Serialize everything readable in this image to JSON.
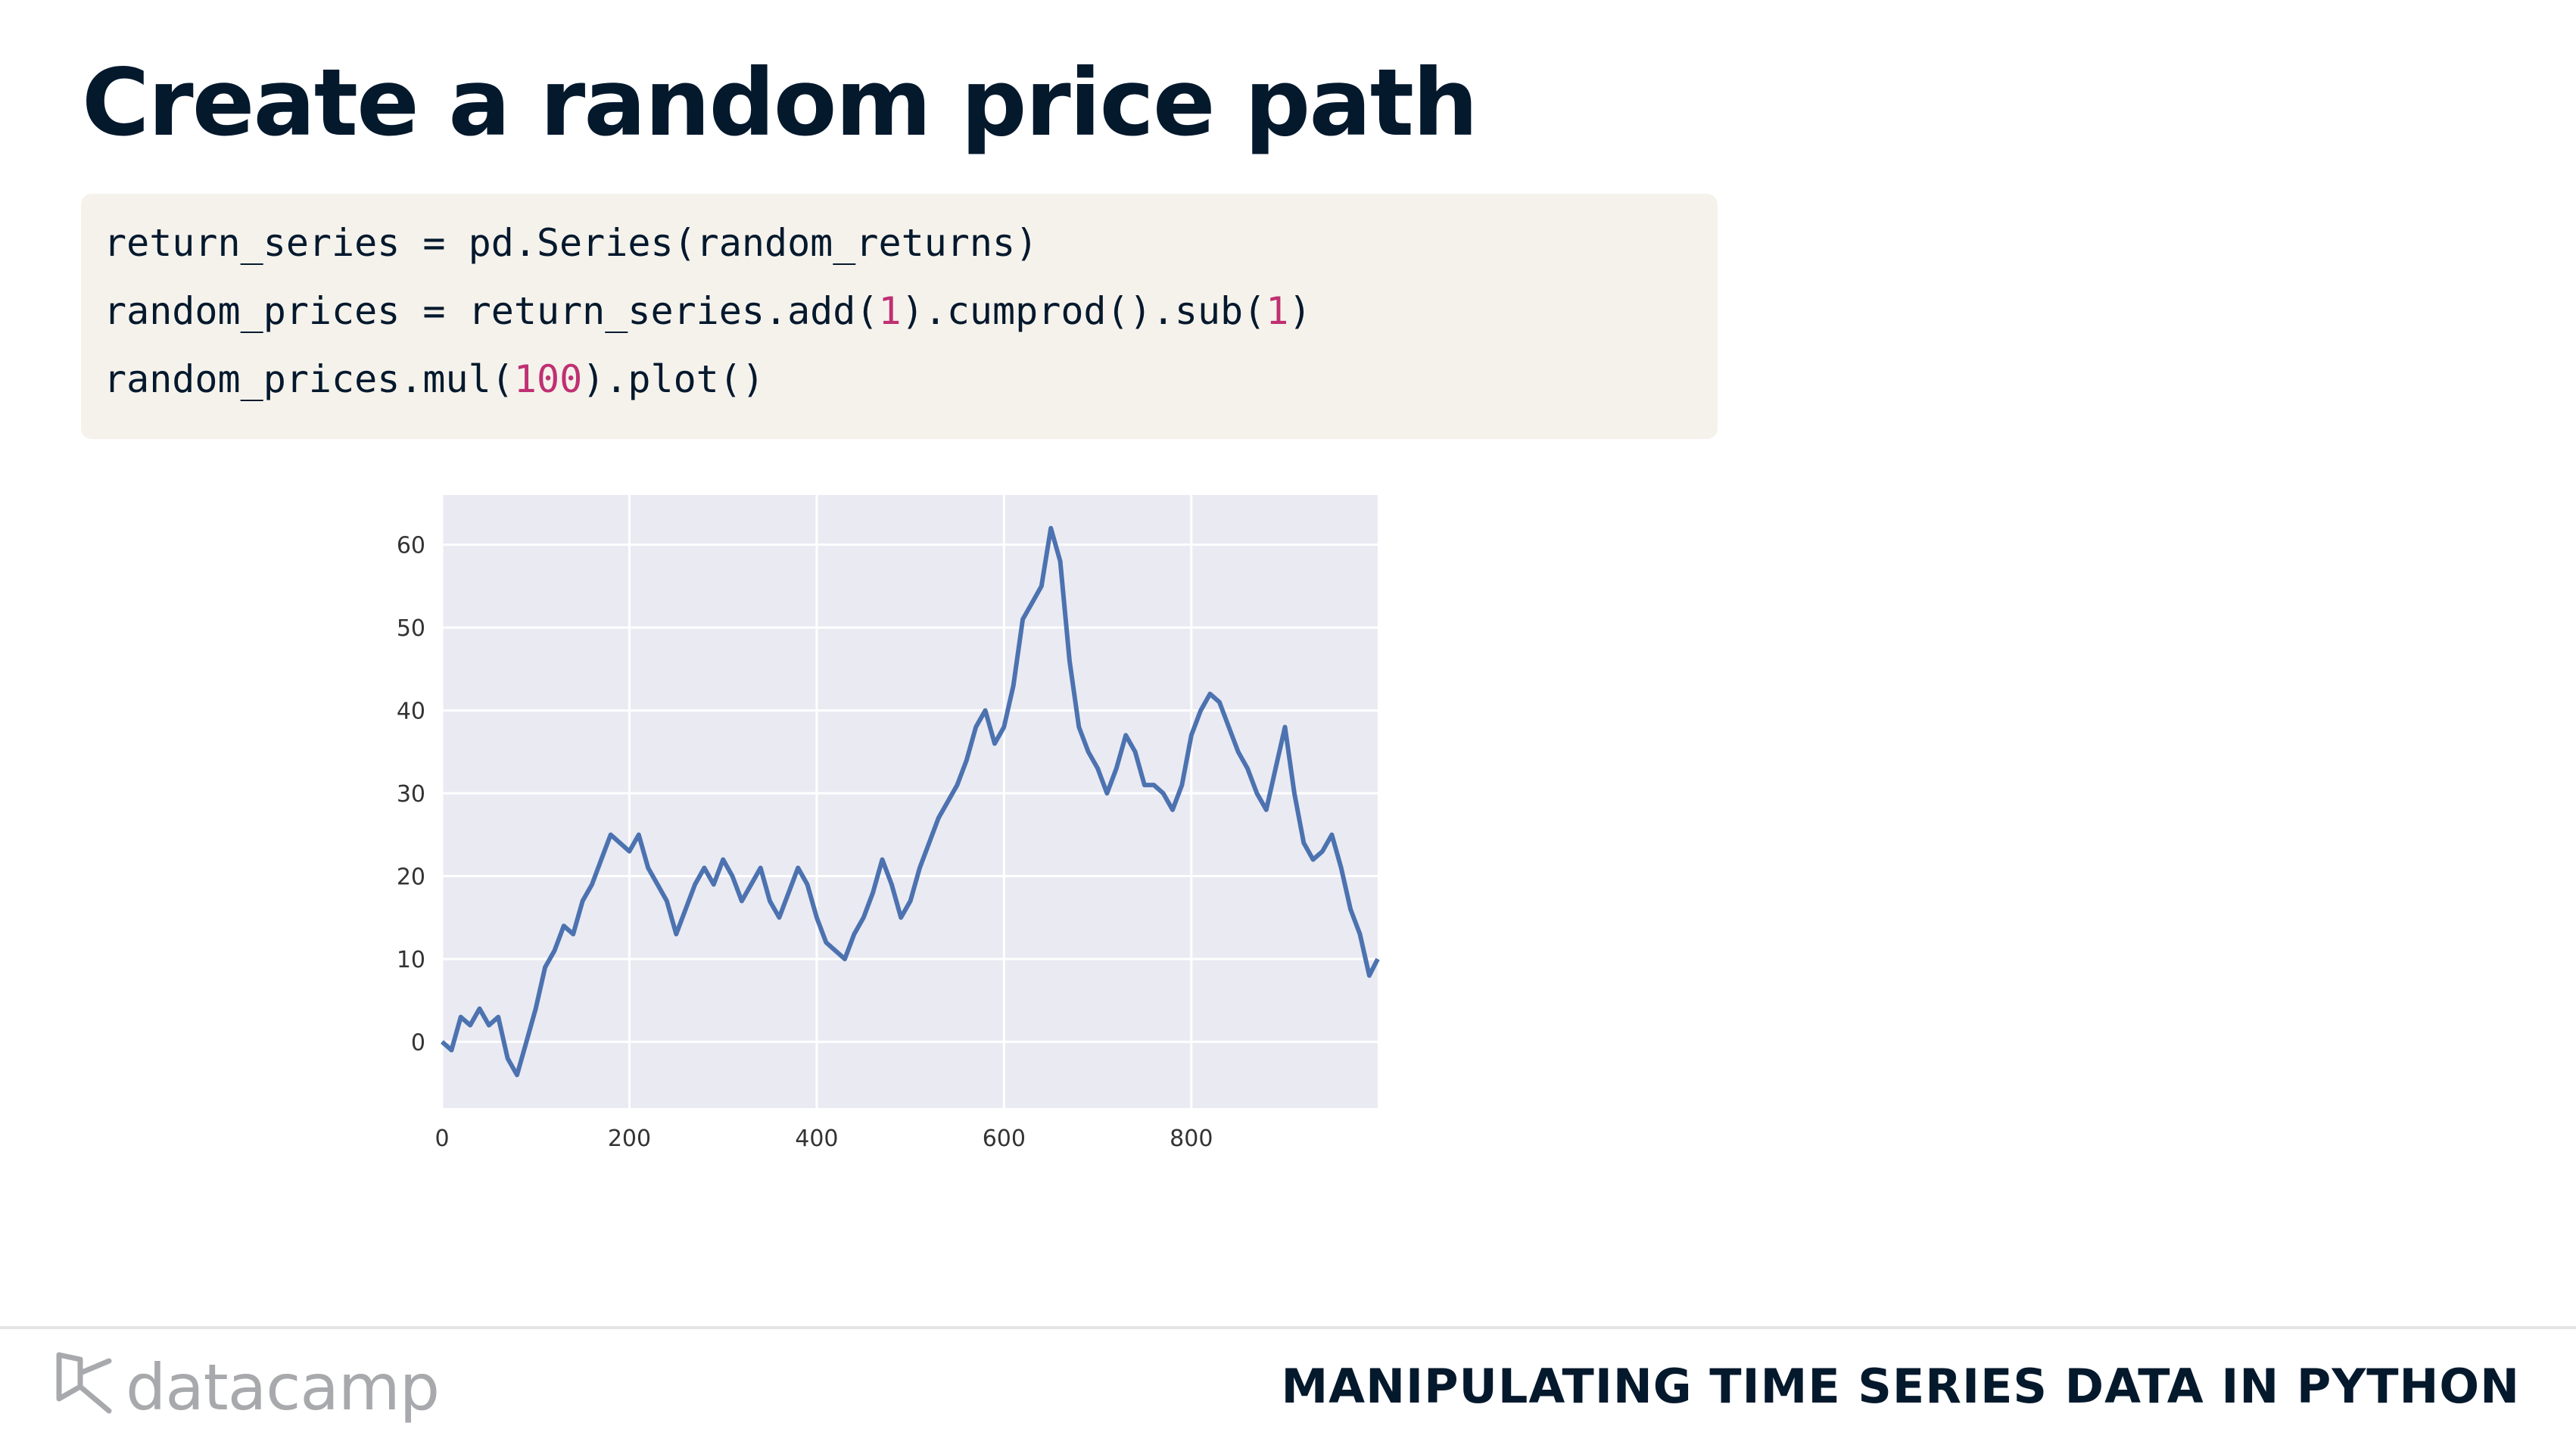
{
  "slide": {
    "title": "Create a random price path",
    "code": [
      [
        {
          "t": "return_series = pd.Series(random_returns)"
        }
      ],
      [
        {
          "t": "random_prices = return_series.add("
        },
        {
          "t": "1",
          "n": true
        },
        {
          "t": ").cumprod().sub("
        },
        {
          "t": "1",
          "n": true
        },
        {
          "t": ")"
        }
      ],
      [
        {
          "t": "random_prices.mul("
        },
        {
          "t": "100",
          "n": true
        },
        {
          "t": ").plot()"
        }
      ]
    ]
  },
  "footer": {
    "brand": "datacamp",
    "course": "MANIPULATING TIME SERIES DATA IN PYTHON"
  },
  "colors": {
    "title": "#05192d",
    "code_bg": "#f5f2ec",
    "code_number": "#bf3072",
    "plot_bg": "#eaeaf2",
    "line": "#4c72b0",
    "brand": "#a7a9ac"
  },
  "chart_data": {
    "type": "line",
    "title": "",
    "xlabel": "",
    "ylabel": "",
    "xlim": [
      0,
      999
    ],
    "ylim": [
      -8,
      66
    ],
    "xticks": [
      0,
      200,
      400,
      600,
      800
    ],
    "yticks": [
      0,
      10,
      20,
      30,
      40,
      50,
      60
    ],
    "grid": true,
    "legend": "none",
    "series": [
      {
        "points": [
          [
            0,
            0
          ],
          [
            10,
            -1
          ],
          [
            20,
            3
          ],
          [
            30,
            2
          ],
          [
            40,
            4
          ],
          [
            50,
            2
          ],
          [
            60,
            3
          ],
          [
            70,
            -2
          ],
          [
            80,
            -4
          ],
          [
            90,
            0
          ],
          [
            100,
            4
          ],
          [
            110,
            9
          ],
          [
            120,
            11
          ],
          [
            130,
            14
          ],
          [
            140,
            13
          ],
          [
            150,
            17
          ],
          [
            160,
            19
          ],
          [
            170,
            22
          ],
          [
            180,
            25
          ],
          [
            190,
            24
          ],
          [
            200,
            23
          ],
          [
            210,
            25
          ],
          [
            220,
            21
          ],
          [
            230,
            19
          ],
          [
            240,
            17
          ],
          [
            250,
            13
          ],
          [
            260,
            16
          ],
          [
            270,
            19
          ],
          [
            280,
            21
          ],
          [
            290,
            19
          ],
          [
            300,
            22
          ],
          [
            310,
            20
          ],
          [
            320,
            17
          ],
          [
            330,
            19
          ],
          [
            340,
            21
          ],
          [
            350,
            17
          ],
          [
            360,
            15
          ],
          [
            370,
            18
          ],
          [
            380,
            21
          ],
          [
            390,
            19
          ],
          [
            400,
            15
          ],
          [
            410,
            12
          ],
          [
            420,
            11
          ],
          [
            430,
            10
          ],
          [
            440,
            13
          ],
          [
            450,
            15
          ],
          [
            460,
            18
          ],
          [
            470,
            22
          ],
          [
            480,
            19
          ],
          [
            490,
            15
          ],
          [
            500,
            17
          ],
          [
            510,
            21
          ],
          [
            520,
            24
          ],
          [
            530,
            27
          ],
          [
            540,
            29
          ],
          [
            550,
            31
          ],
          [
            560,
            34
          ],
          [
            570,
            38
          ],
          [
            580,
            40
          ],
          [
            590,
            36
          ],
          [
            600,
            38
          ],
          [
            610,
            43
          ],
          [
            620,
            51
          ],
          [
            630,
            53
          ],
          [
            640,
            55
          ],
          [
            650,
            62
          ],
          [
            660,
            58
          ],
          [
            670,
            46
          ],
          [
            680,
            38
          ],
          [
            690,
            35
          ],
          [
            700,
            33
          ],
          [
            710,
            30
          ],
          [
            720,
            33
          ],
          [
            730,
            37
          ],
          [
            740,
            35
          ],
          [
            750,
            31
          ],
          [
            760,
            31
          ],
          [
            770,
            30
          ],
          [
            780,
            28
          ],
          [
            790,
            31
          ],
          [
            800,
            37
          ],
          [
            810,
            40
          ],
          [
            820,
            42
          ],
          [
            830,
            41
          ],
          [
            840,
            38
          ],
          [
            850,
            35
          ],
          [
            860,
            33
          ],
          [
            870,
            30
          ],
          [
            880,
            28
          ],
          [
            890,
            33
          ],
          [
            900,
            38
          ],
          [
            910,
            30
          ],
          [
            920,
            24
          ],
          [
            930,
            22
          ],
          [
            940,
            23
          ],
          [
            950,
            25
          ],
          [
            960,
            21
          ],
          [
            970,
            16
          ],
          [
            980,
            13
          ],
          [
            990,
            8
          ],
          [
            999,
            10
          ]
        ]
      }
    ]
  }
}
